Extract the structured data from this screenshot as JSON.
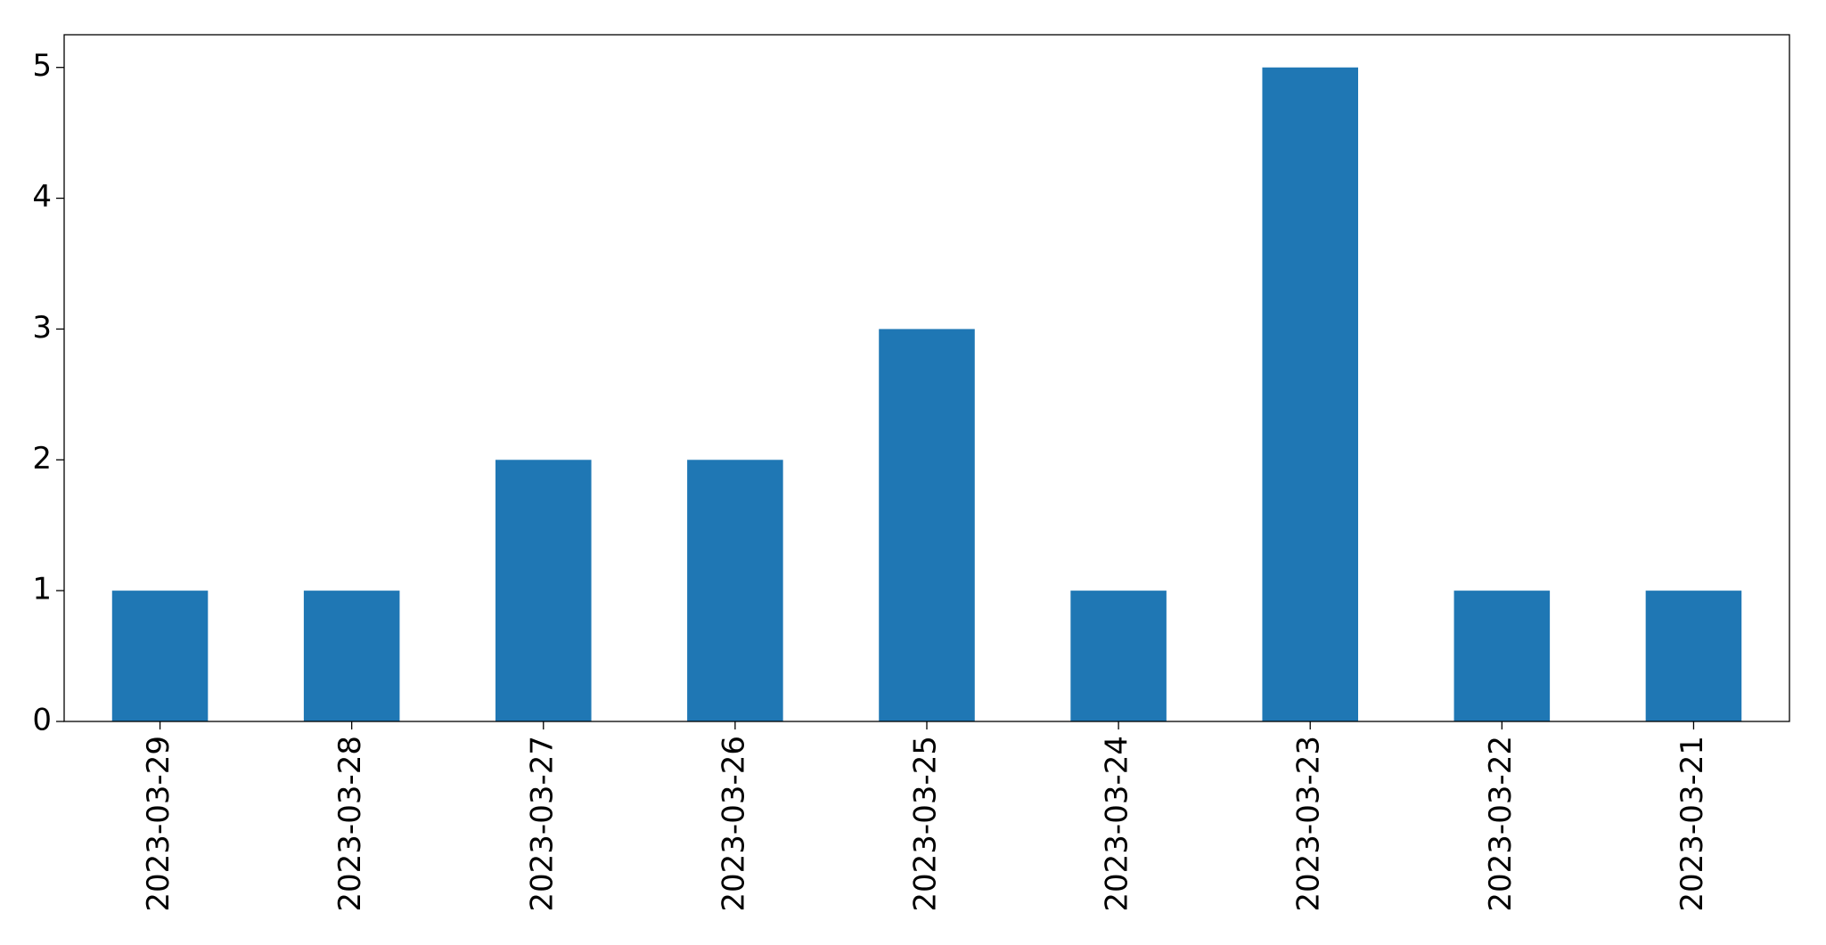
{
  "chart_data": {
    "type": "bar",
    "categories": [
      "2023-03-29",
      "2023-03-28",
      "2023-03-27",
      "2023-03-26",
      "2023-03-25",
      "2023-03-24",
      "2023-03-23",
      "2023-03-22",
      "2023-03-21"
    ],
    "values": [
      1,
      1,
      2,
      2,
      3,
      1,
      5,
      1,
      1
    ],
    "color": "#1f77b4",
    "ylim": [
      0,
      5.25
    ],
    "yticks": [
      0,
      1,
      2,
      3,
      4,
      5
    ],
    "grid": false
  }
}
